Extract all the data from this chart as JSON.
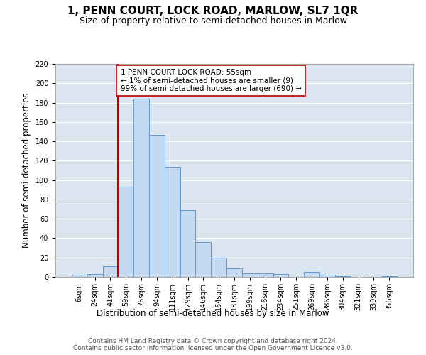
{
  "title": "1, PENN COURT, LOCK ROAD, MARLOW, SL7 1QR",
  "subtitle": "Size of property relative to semi-detached houses in Marlow",
  "xlabel": "Distribution of semi-detached houses by size in Marlow",
  "ylabel": "Number of semi-detached properties",
  "categories": [
    "6sqm",
    "24sqm",
    "41sqm",
    "59sqm",
    "76sqm",
    "94sqm",
    "111sqm",
    "129sqm",
    "146sqm",
    "164sqm",
    "181sqm",
    "199sqm",
    "216sqm",
    "234sqm",
    "251sqm",
    "269sqm",
    "286sqm",
    "304sqm",
    "321sqm",
    "339sqm",
    "356sqm"
  ],
  "values": [
    2,
    3,
    11,
    93,
    184,
    147,
    114,
    69,
    36,
    20,
    9,
    4,
    4,
    3,
    0,
    5,
    2,
    1,
    0,
    0,
    1
  ],
  "bar_color": "#c5d9f1",
  "bar_edge_color": "#5b9bd5",
  "property_bin_index": 3,
  "annotation_text": "1 PENN COURT LOCK ROAD: 55sqm\n← 1% of semi-detached houses are smaller (9)\n99% of semi-detached houses are larger (690) →",
  "vline_color": "#c00000",
  "annotation_box_color": "#ffffff",
  "annotation_box_edge": "#c00000",
  "ylim": [
    0,
    220
  ],
  "yticks": [
    0,
    20,
    40,
    60,
    80,
    100,
    120,
    140,
    160,
    180,
    200,
    220
  ],
  "footer": "Contains HM Land Registry data © Crown copyright and database right 2024.\nContains public sector information licensed under the Open Government Licence v3.0.",
  "plot_background": "#dce6f1",
  "grid_color": "#ffffff",
  "title_fontsize": 11,
  "subtitle_fontsize": 9,
  "axis_label_fontsize": 8.5,
  "tick_fontsize": 7,
  "annotation_fontsize": 7.5,
  "footer_fontsize": 6.5
}
